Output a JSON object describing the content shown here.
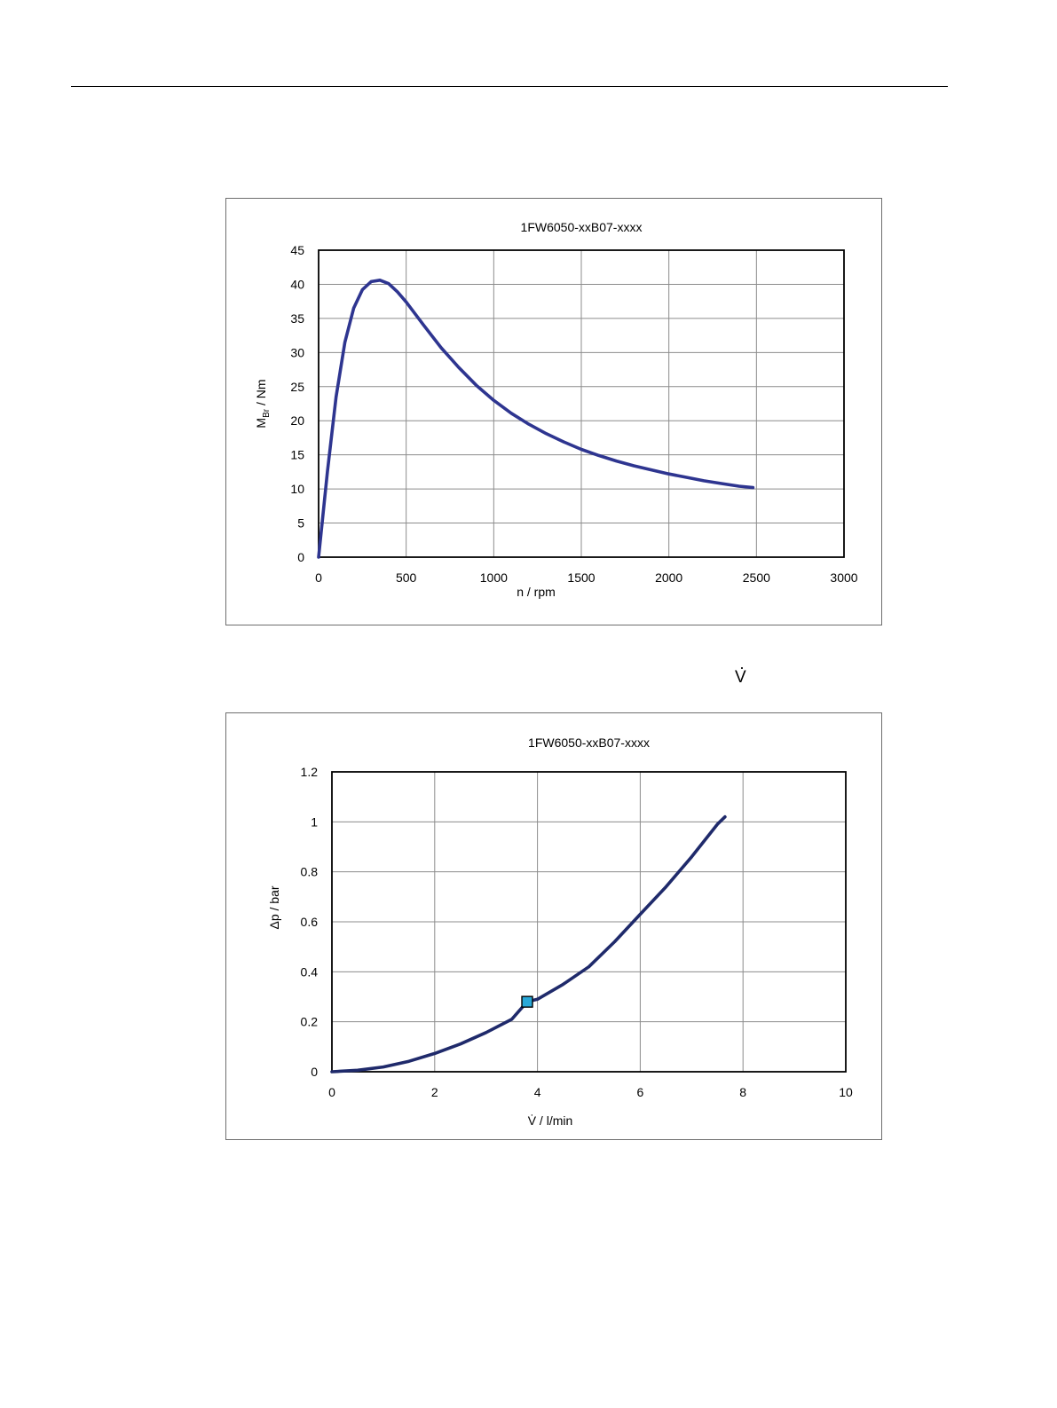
{
  "page": {
    "v_symbol": "V",
    "v_symbol_dot": "·"
  },
  "chart_data": [
    {
      "type": "line",
      "title": "1FW6050-xxB07-xxxx",
      "xlabel": "n / rpm",
      "ylabel": {
        "main": "M",
        "sub": "Br",
        "rest": " / Nm"
      },
      "xlim": [
        0,
        3000
      ],
      "ylim": [
        0,
        45
      ],
      "x_ticks": [
        0,
        500,
        1000,
        1500,
        2000,
        2500,
        3000
      ],
      "y_ticks": [
        0,
        5,
        10,
        15,
        20,
        25,
        30,
        35,
        40,
        45
      ],
      "grid": true,
      "legend": "none",
      "series_color": "#2e3590",
      "series": [
        {
          "x": [
            0,
            50,
            100,
            150,
            200,
            250,
            300,
            350,
            400,
            450,
            500,
            600,
            700,
            800,
            900,
            1000,
            1100,
            1200,
            1300,
            1400,
            1500,
            1600,
            1700,
            1800,
            1900,
            2000,
            2100,
            2200,
            2300,
            2400,
            2480
          ],
          "values": [
            0,
            12.5,
            23.5,
            31.5,
            36.5,
            39.2,
            40.4,
            40.6,
            40.1,
            38.9,
            37.4,
            34.0,
            30.7,
            27.8,
            25.2,
            23.0,
            21.1,
            19.5,
            18.1,
            16.9,
            15.8,
            14.9,
            14.1,
            13.4,
            12.8,
            12.2,
            11.7,
            11.2,
            10.8,
            10.4,
            10.2
          ]
        }
      ]
    },
    {
      "type": "line",
      "title": "1FW6050-xxB07-xxxx",
      "xlabel": "V̇ / l/min",
      "ylabel": "Δp / bar",
      "xlim": [
        0,
        10
      ],
      "ylim": [
        0,
        1.2
      ],
      "x_ticks": [
        0,
        2,
        4,
        6,
        8,
        10
      ],
      "y_ticks": [
        0,
        0.2,
        0.4,
        0.6,
        0.8,
        1,
        1.2
      ],
      "grid": true,
      "legend": "none",
      "series_color": "#1f2a6b",
      "marker_color": "#29a8d8",
      "marker": {
        "x": 3.8,
        "y": 0.28
      },
      "series": [
        {
          "x": [
            0,
            0.5,
            1,
            1.5,
            2,
            2.5,
            3,
            3.5,
            3.8,
            4,
            4.5,
            5,
            5.5,
            6,
            6.5,
            7,
            7.5,
            7.65
          ],
          "values": [
            0,
            0.006,
            0.019,
            0.042,
            0.073,
            0.111,
            0.157,
            0.21,
            0.28,
            0.29,
            0.35,
            0.42,
            0.52,
            0.63,
            0.74,
            0.86,
            0.99,
            1.02
          ]
        }
      ]
    }
  ]
}
